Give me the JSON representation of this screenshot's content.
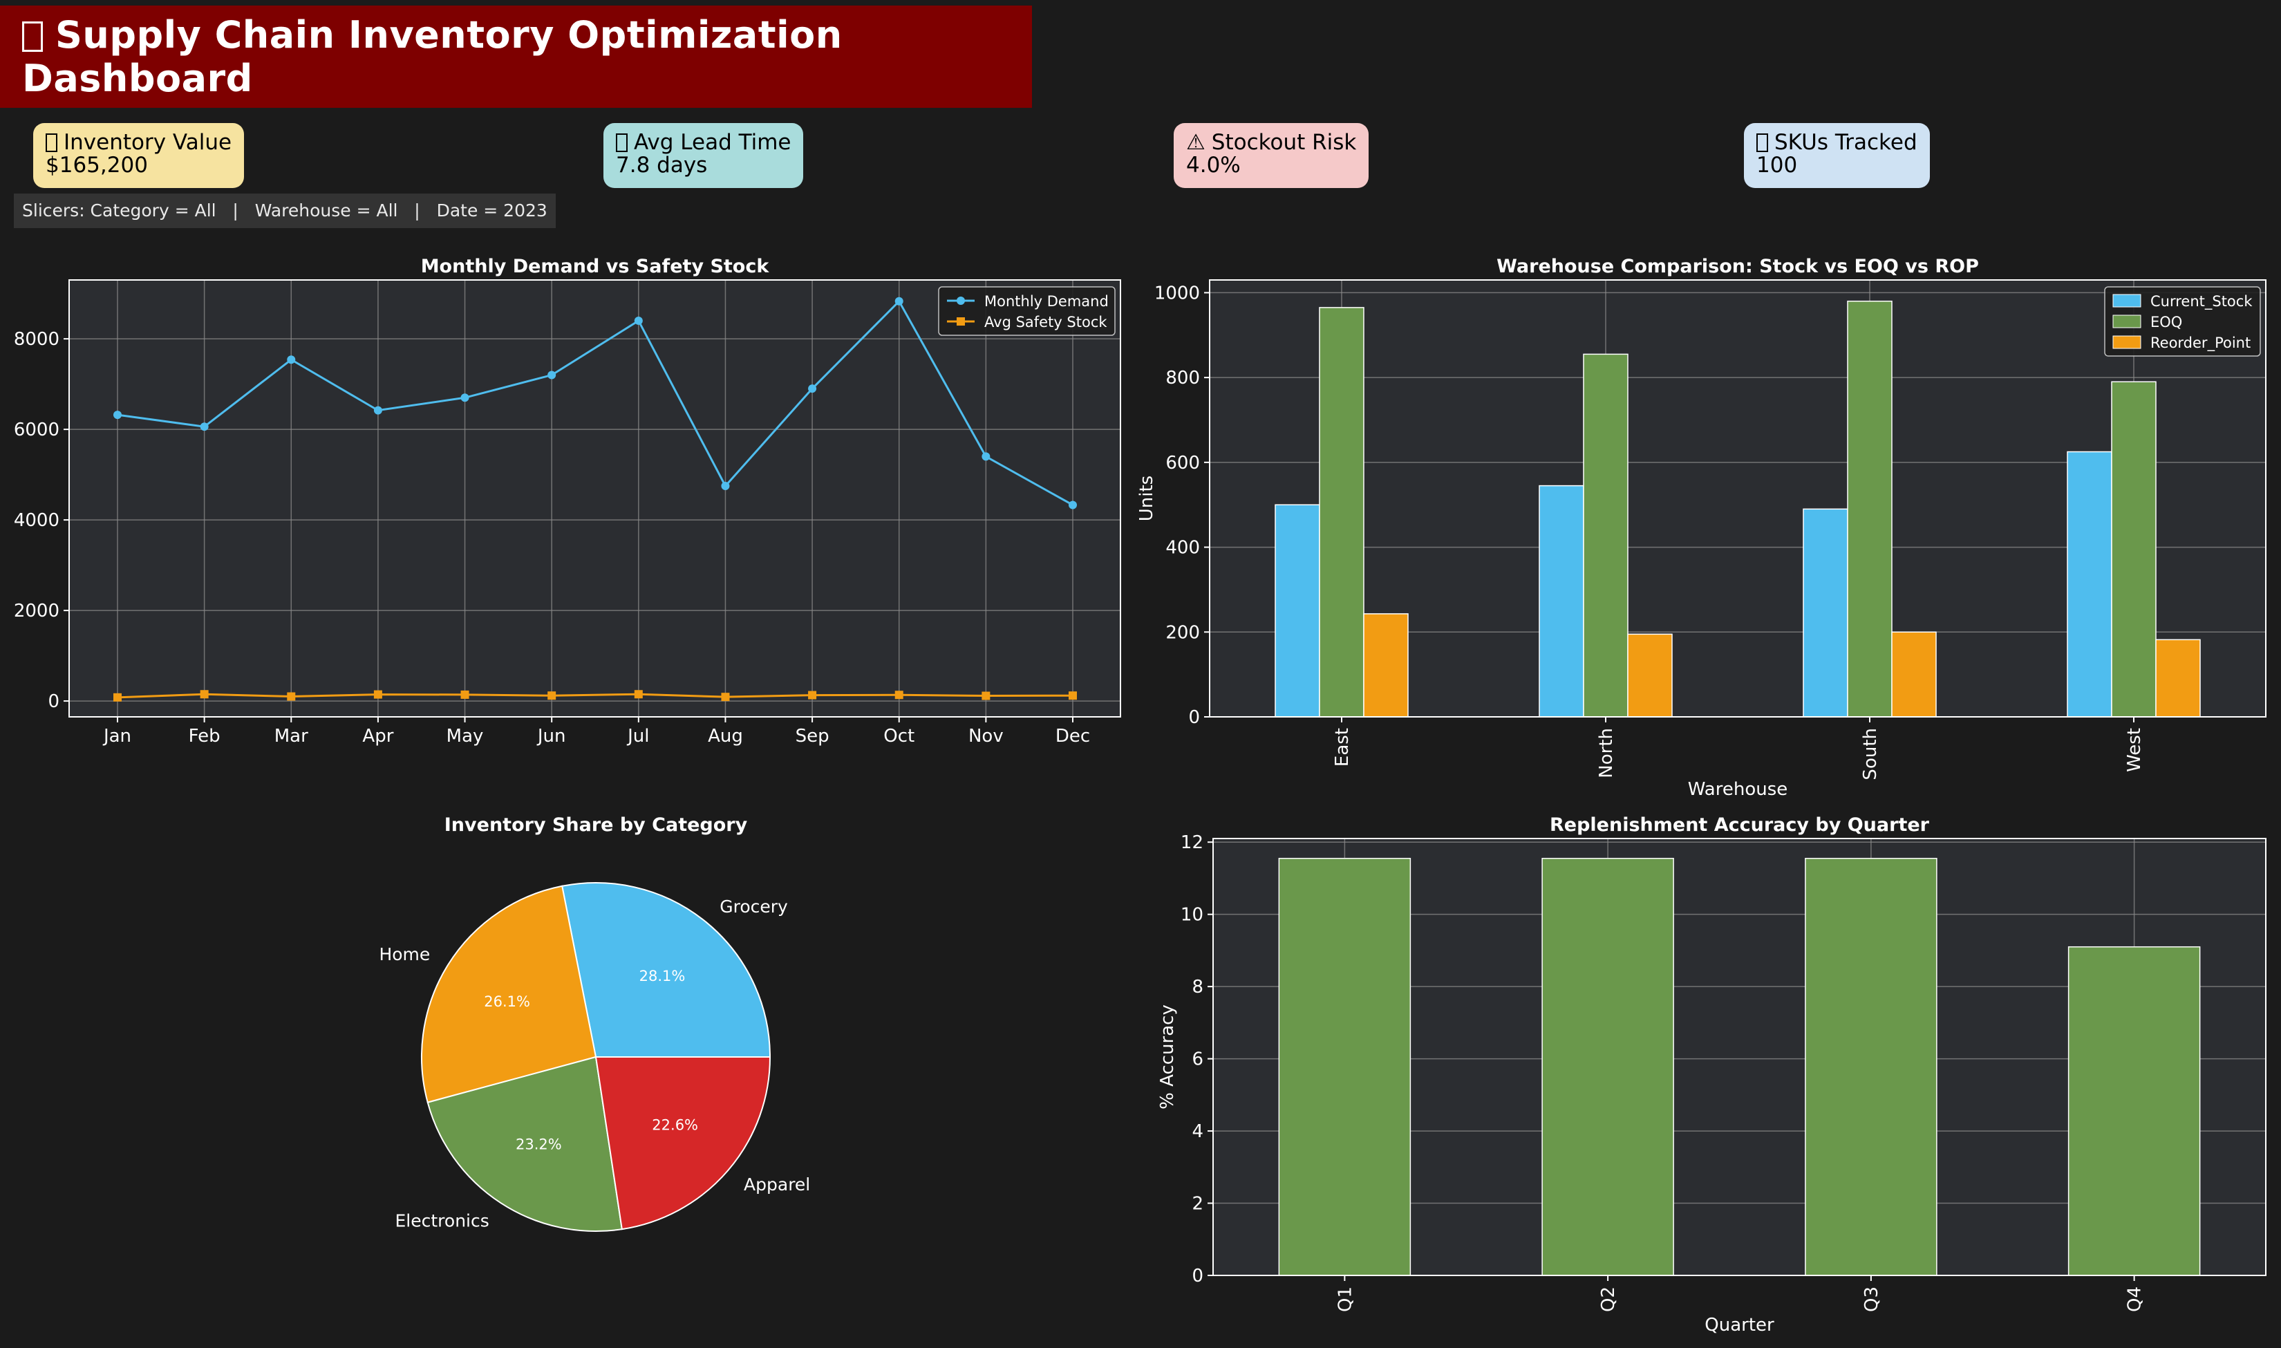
{
  "header": {
    "title": "Supply Chain Inventory Optimization Dashboard",
    "icon": "package-icon"
  },
  "kpis": [
    {
      "label": "Inventory Value",
      "value": "$165,200",
      "icon": "money-icon",
      "bg": "#f6e3a0"
    },
    {
      "label": "Avg Lead Time",
      "value": "7.8 days",
      "icon": "truck-icon",
      "bg": "#a9dcdc"
    },
    {
      "label": "Stockout Risk",
      "value": "4.0%",
      "icon": "warning-icon",
      "glyph": "⚠",
      "bg": "#f5c9c9"
    },
    {
      "label": "SKUs Tracked",
      "value": "100",
      "icon": "box-icon",
      "bg": "#cfe2f3"
    }
  ],
  "slicer": {
    "text": "Slicers: Category = All   |   Warehouse = All   |   Date = 2023"
  },
  "colors": {
    "blue": "#4fbdee",
    "orange": "#f29c13",
    "green": "#6a984b",
    "red": "#d62728",
    "plot_bg": "#2b2d31"
  },
  "chart_data": [
    {
      "type": "line",
      "title": "Monthly Demand vs Safety Stock",
      "categories": [
        "Jan",
        "Feb",
        "Mar",
        "Apr",
        "May",
        "Jun",
        "Jul",
        "Aug",
        "Sep",
        "Oct",
        "Nov",
        "Dec"
      ],
      "series": [
        {
          "name": "Monthly Demand",
          "values": [
            6320,
            6060,
            7540,
            6420,
            6700,
            7200,
            8400,
            4750,
            6900,
            8830,
            5400,
            4330
          ],
          "color": "#4fbdee",
          "marker": "circle"
        },
        {
          "name": "Avg Safety Stock",
          "values": [
            80,
            150,
            100,
            145,
            140,
            120,
            150,
            90,
            130,
            135,
            115,
            120
          ],
          "color": "#f29c13",
          "marker": "square"
        }
      ],
      "yticks": [
        "0",
        "2000",
        "4000",
        "6000",
        "8000"
      ],
      "ylim": [
        -350,
        9300
      ],
      "grid": true,
      "legend": "top-right"
    },
    {
      "type": "bar",
      "title": "Warehouse Comparison: Stock vs EOQ vs ROP",
      "categories": [
        "East",
        "North",
        "South",
        "West"
      ],
      "series": [
        {
          "name": "Current_Stock",
          "values": [
            500,
            545,
            490,
            625
          ],
          "color": "#4fbdee"
        },
        {
          "name": "EOQ",
          "values": [
            965,
            855,
            980,
            790
          ],
          "color": "#6a984b"
        },
        {
          "name": "Reorder_Point",
          "values": [
            243,
            195,
            200,
            182
          ],
          "color": "#f29c13"
        }
      ],
      "xlabel": "Warehouse",
      "ylabel": "Units",
      "yticks": [
        "0",
        "200",
        "400",
        "600",
        "800",
        "1000"
      ],
      "ylim": [
        0,
        1030
      ],
      "grid": true,
      "legend": "top-right"
    },
    {
      "type": "pie",
      "title": "Inventory Share by Category",
      "slices": [
        {
          "label": "Grocery",
          "pct": 28.1,
          "pct_label": "28.1%",
          "color": "#4fbdee"
        },
        {
          "label": "Home",
          "pct": 26.1,
          "pct_label": "26.1%",
          "color": "#f29c13"
        },
        {
          "label": "Electronics",
          "pct": 23.2,
          "pct_label": "23.2%",
          "color": "#6a984b"
        },
        {
          "label": "Apparel",
          "pct": 22.6,
          "pct_label": "22.6%",
          "color": "#d62728"
        }
      ]
    },
    {
      "type": "bar",
      "title": "Replenishment Accuracy by Quarter",
      "categories": [
        "Q1",
        "Q2",
        "Q3",
        "Q4"
      ],
      "series": [
        {
          "values": [
            11.55,
            11.55,
            11.55,
            9.1
          ],
          "color": "#6a984b"
        }
      ],
      "xlabel": "Quarter",
      "ylabel": "% Accuracy",
      "yticks": [
        "0",
        "2",
        "4",
        "6",
        "8",
        "10",
        "12"
      ],
      "ylim": [
        0,
        12.1
      ],
      "grid": true
    }
  ]
}
